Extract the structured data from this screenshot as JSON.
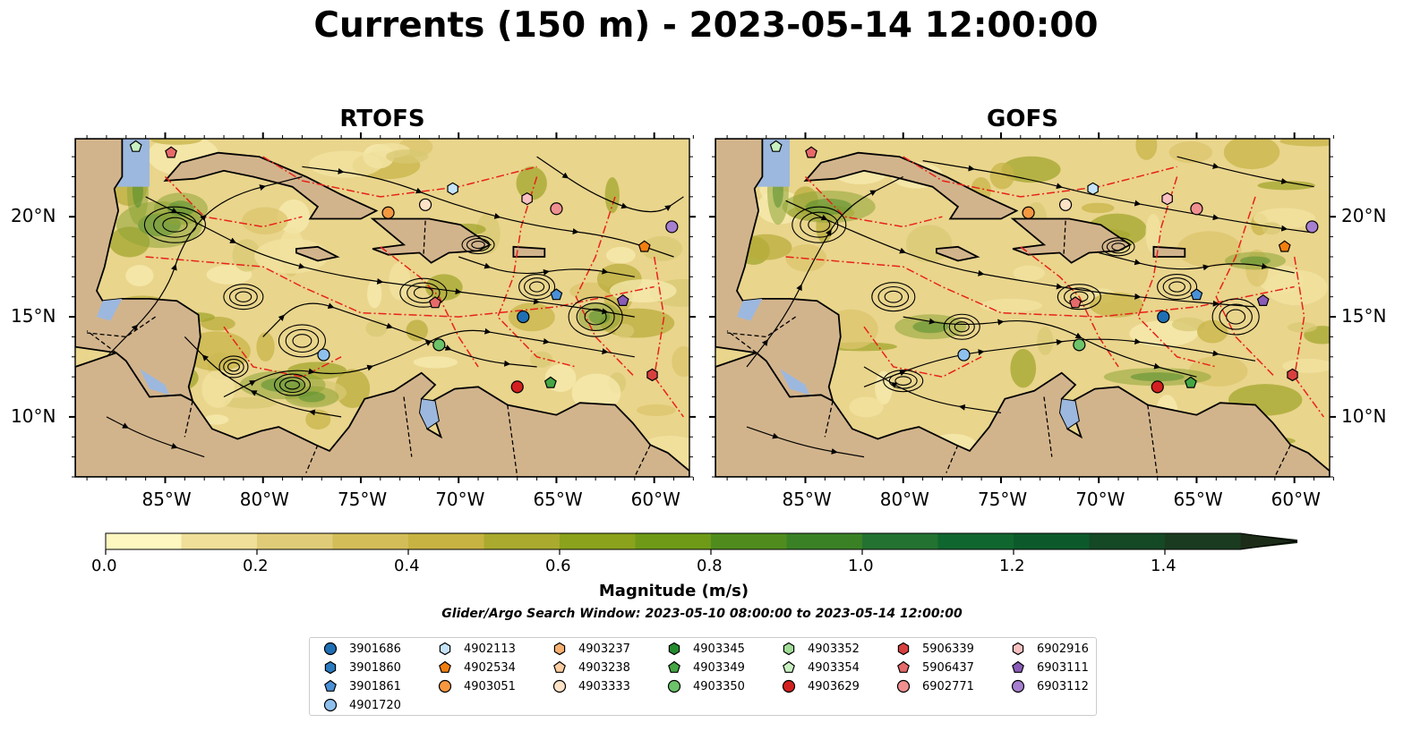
{
  "title": "Currents (150 m) - 2023-05-14 12:00:00",
  "maps": [
    {
      "name": "RTOFS"
    },
    {
      "name": "GOFS"
    }
  ],
  "lon_ticks": [
    "85°W",
    "80°W",
    "75°W",
    "70°W",
    "65°W",
    "60°W"
  ],
  "lat_ticks": [
    "20°N",
    "15°N",
    "10°N"
  ],
  "colorbar": {
    "label": "Magnitude (m/s)",
    "ticks": [
      "0.0",
      "0.2",
      "0.4",
      "0.6",
      "0.8",
      "1.0",
      "1.2",
      "1.4"
    ],
    "colors": [
      "#fef7c0",
      "#efdf98",
      "#e0cc78",
      "#d3bd58",
      "#c7b342",
      "#a9aa2e",
      "#8aa21c",
      "#6e9a18",
      "#4f8c1d",
      "#3a8126",
      "#237231",
      "#10662f",
      "#0c5a2b",
      "#154825",
      "#1a3b20",
      "#1c2c18"
    ]
  },
  "search_window": "Glider/Argo Search Window: 2023-05-10 08:00:00 to 2023-05-14 12:00:00",
  "legend": [
    {
      "id": "3901686",
      "shape": "circle",
      "color": "#1f6fb4"
    },
    {
      "id": "3901860",
      "shape": "hexagon",
      "color": "#2b7bc0"
    },
    {
      "id": "3901861",
      "shape": "pentagon",
      "color": "#4a90d6"
    },
    {
      "id": "4901720",
      "shape": "circle",
      "color": "#8ec0ee"
    },
    {
      "id": "4902113",
      "shape": "hexagon",
      "color": "#c5e4fa"
    },
    {
      "id": "4902534",
      "shape": "pentagon",
      "color": "#f07f10"
    },
    {
      "id": "4903051",
      "shape": "circle",
      "color": "#f59840"
    },
    {
      "id": "4903237",
      "shape": "hexagon",
      "color": "#f7b070"
    },
    {
      "id": "4903238",
      "shape": "pentagon",
      "color": "#fbcda0"
    },
    {
      "id": "4903333",
      "shape": "circle",
      "color": "#fde2c8"
    },
    {
      "id": "4903345",
      "shape": "hexagon",
      "color": "#238b2e"
    },
    {
      "id": "4903349",
      "shape": "pentagon",
      "color": "#44a744"
    },
    {
      "id": "4903350",
      "shape": "circle",
      "color": "#6cc36a"
    },
    {
      "id": "4903352",
      "shape": "hexagon",
      "color": "#a0dc96"
    },
    {
      "id": "4903354",
      "shape": "pentagon",
      "color": "#c8f0c0"
    },
    {
      "id": "4903629",
      "shape": "circle",
      "color": "#d32020"
    },
    {
      "id": "5906339",
      "shape": "hexagon",
      "color": "#d84040"
    },
    {
      "id": "5906437",
      "shape": "pentagon",
      "color": "#e66a6a"
    },
    {
      "id": "6902771",
      "shape": "circle",
      "color": "#f09090"
    },
    {
      "id": "6902916",
      "shape": "hexagon",
      "color": "#f8c0c0"
    },
    {
      "id": "6903111",
      "shape": "pentagon",
      "color": "#8a5cb8"
    },
    {
      "id": "6903112",
      "shape": "circle",
      "color": "#a77fd0"
    }
  ],
  "floats_on_map": [
    {
      "id": "4903354",
      "lon": -86.5,
      "lat": 23.5
    },
    {
      "id": "5906437",
      "lon": -84.7,
      "lat": 23.2
    },
    {
      "id": "4903051",
      "lon": -73.6,
      "lat": 20.2
    },
    {
      "id": "4903333",
      "lon": -71.7,
      "lat": 20.6
    },
    {
      "id": "4902113",
      "lon": -70.3,
      "lat": 21.4
    },
    {
      "id": "6902916",
      "lon": -66.5,
      "lat": 20.9
    },
    {
      "id": "6902771",
      "lon": -65.0,
      "lat": 20.4
    },
    {
      "id": "6903112",
      "lon": -59.1,
      "lat": 19.5
    },
    {
      "id": "4902534",
      "lon": -60.5,
      "lat": 18.5
    },
    {
      "id": "3901861",
      "lon": -65.0,
      "lat": 16.1
    },
    {
      "id": "5906437",
      "lon": -71.2,
      "lat": 15.7
    },
    {
      "id": "6903111",
      "lon": -61.6,
      "lat": 15.8
    },
    {
      "id": "3901686",
      "lon": -66.7,
      "lat": 15.0
    },
    {
      "id": "4903350",
      "lon": -71.0,
      "lat": 13.6
    },
    {
      "id": "4901720",
      "lon": -76.9,
      "lat": 13.1
    },
    {
      "id": "4903629",
      "lon": -67.0,
      "lat": 11.5
    },
    {
      "id": "4903349",
      "lon": -65.3,
      "lat": 11.7
    },
    {
      "id": "5906339",
      "lon": -60.1,
      "lat": 12.1
    }
  ]
}
